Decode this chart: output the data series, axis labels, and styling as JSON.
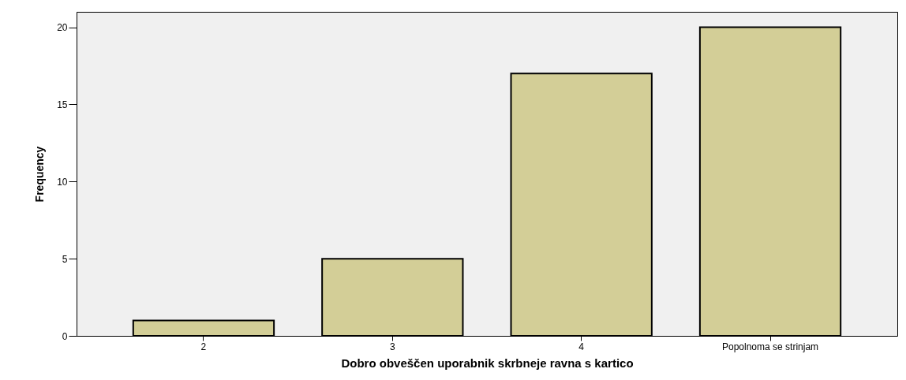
{
  "chart_data": {
    "type": "bar",
    "xlabel": "Dobro obveščen uporabnik skrbneje ravna s kartico",
    "ylabel": "Frequency",
    "categories": [
      "2",
      "3",
      "4",
      "Popolnoma se strinjam"
    ],
    "values": [
      1,
      5,
      17,
      20
    ],
    "color": "#d3ce97",
    "ylim": [
      0,
      21
    ],
    "yticks": [
      0,
      5,
      10,
      15,
      20
    ],
    "grid": false
  }
}
